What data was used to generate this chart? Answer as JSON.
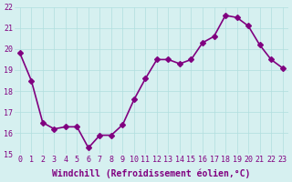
{
  "hours": [
    0,
    1,
    2,
    3,
    4,
    5,
    6,
    7,
    8,
    9,
    10,
    11,
    12,
    13,
    14,
    15,
    16,
    17,
    18,
    19,
    20,
    21,
    22,
    23
  ],
  "values": [
    19.8,
    18.5,
    16.5,
    16.2,
    16.3,
    16.3,
    15.3,
    15.9,
    15.9,
    16.4,
    17.6,
    18.6,
    19.5,
    19.5,
    19.3,
    19.5,
    20.3,
    20.6,
    21.6,
    21.5,
    21.1,
    20.2,
    19.5,
    19.1
  ],
  "line_color": "#800080",
  "marker": "D",
  "marker_size": 3,
  "bg_color": "#d6f0f0",
  "grid_color": "#b0dede",
  "ylim": [
    15,
    22
  ],
  "xlim": [
    -0.5,
    23.5
  ],
  "yticks": [
    15,
    16,
    17,
    18,
    19,
    20,
    21,
    22
  ],
  "xticks": [
    0,
    1,
    2,
    3,
    4,
    5,
    6,
    7,
    8,
    9,
    10,
    11,
    12,
    13,
    14,
    15,
    16,
    17,
    18,
    19,
    20,
    21,
    22,
    23
  ],
  "xlabel": "Windchill (Refroidissement éolien,°C)",
  "xlabel_fontsize": 7,
  "tick_fontsize": 6,
  "line_width": 1.2
}
